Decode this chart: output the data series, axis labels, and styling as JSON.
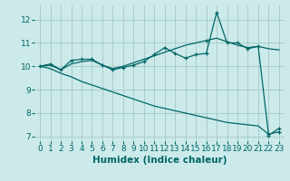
{
  "xlabel": "Humidex (Indice chaleur)",
  "bg_color": "#cceaea",
  "grid_color": "#aacccc",
  "line_color": "#006666",
  "xlim": [
    -0.5,
    23.5
  ],
  "ylim": [
    6.8,
    12.6
  ],
  "yticks": [
    7,
    8,
    9,
    10,
    11,
    12
  ],
  "xticks": [
    0,
    1,
    2,
    3,
    4,
    5,
    6,
    7,
    8,
    9,
    10,
    11,
    12,
    13,
    14,
    15,
    16,
    17,
    18,
    19,
    20,
    21,
    22,
    23
  ],
  "series1": [
    10.0,
    10.1,
    9.85,
    10.25,
    10.3,
    10.3,
    10.05,
    9.85,
    9.95,
    10.05,
    10.2,
    10.5,
    10.8,
    10.55,
    10.35,
    10.5,
    10.55,
    12.3,
    11.0,
    11.0,
    10.75,
    10.85,
    7.05,
    7.35
  ],
  "series2": [
    10.0,
    10.05,
    9.85,
    10.1,
    10.2,
    10.25,
    10.05,
    9.9,
    10.0,
    10.15,
    10.3,
    10.45,
    10.6,
    10.75,
    10.9,
    11.0,
    11.1,
    11.2,
    11.05,
    10.9,
    10.8,
    10.85,
    10.75,
    10.7
  ],
  "series3": [
    10.0,
    9.9,
    9.7,
    9.55,
    9.35,
    9.2,
    9.05,
    8.9,
    8.75,
    8.6,
    8.45,
    8.3,
    8.2,
    8.1,
    8.0,
    7.9,
    7.8,
    7.7,
    7.6,
    7.55,
    7.5,
    7.45,
    7.1,
    7.2
  ],
  "s1_marker_idx": [
    0,
    1,
    2,
    3,
    4,
    5,
    6,
    7,
    8,
    9,
    10,
    11,
    12,
    13,
    14,
    15,
    16,
    17,
    18,
    19,
    20,
    21,
    22,
    23
  ],
  "s2_marker_idx": [
    16
  ],
  "s3_marker_idx": [
    22,
    23
  ],
  "tick_fontsize": 6.5,
  "xlabel_fontsize": 7.5
}
